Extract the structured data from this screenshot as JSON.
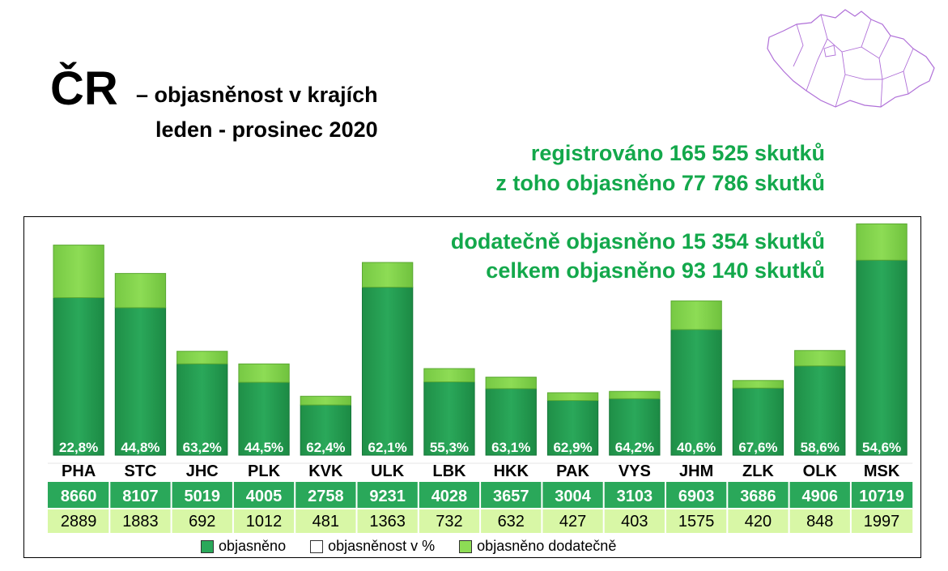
{
  "header": {
    "title_main": "ČR",
    "title_sub": "– objasněnost v krajích",
    "period": "leden - prosinec 2020"
  },
  "stats": {
    "registered": "registrováno 165 525 skutků",
    "cleared": "z toho objasněno 77 786 skutků",
    "additionally_cleared": "dodatečně objasněno 15 354 skutků",
    "total_cleared": "celkem objasněno 93 140 skutků"
  },
  "colors": {
    "cleared": "#2aa85a",
    "additional": "#8ddc55",
    "text_green": "#13a84b",
    "row1_bg": "#2aa85a",
    "row2_bg": "#d8f7a6"
  },
  "chart_data": {
    "type": "bar",
    "stacked": true,
    "categories": [
      "PHA",
      "STC",
      "JHC",
      "PLK",
      "KVK",
      "ULK",
      "LBK",
      "HKK",
      "PAK",
      "VYS",
      "JHM",
      "ZLK",
      "OLK",
      "MSK"
    ],
    "series": [
      {
        "name": "objasněno",
        "values": [
          8660,
          8107,
          5019,
          4005,
          2758,
          9231,
          4028,
          3657,
          3004,
          3103,
          6903,
          3686,
          4906,
          10719
        ]
      },
      {
        "name": "objasněno dodatečně",
        "values": [
          2889,
          1883,
          692,
          1012,
          481,
          1363,
          732,
          632,
          427,
          403,
          1575,
          420,
          848,
          1997
        ]
      }
    ],
    "percent_labels": [
      "22,8%",
      "44,8%",
      "63,2%",
      "44,5%",
      "62,4%",
      "62,1%",
      "55,3%",
      "63,1%",
      "62,9%",
      "64,2%",
      "40,6%",
      "67,6%",
      "58,6%",
      "54,6%"
    ],
    "legend": [
      "objasněno",
      "objasněnost v %",
      "objasněno dodatečně"
    ],
    "legend_placement": "bottom"
  }
}
